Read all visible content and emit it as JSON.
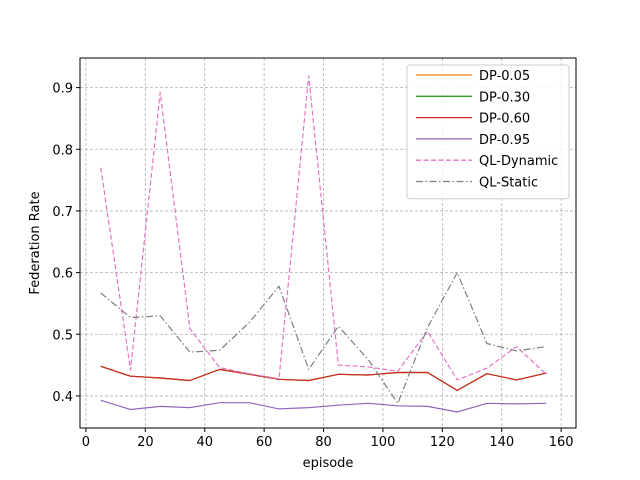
{
  "chart_data": {
    "type": "line",
    "xlabel": "episode",
    "ylabel": "Federation Rate",
    "xlim": [
      -2,
      165
    ],
    "ylim": [
      0.348,
      0.948
    ],
    "xticks": [
      0,
      20,
      40,
      60,
      80,
      100,
      120,
      140,
      160
    ],
    "xtick_labels": [
      "0",
      "20",
      "40",
      "60",
      "80",
      "100",
      "120",
      "140",
      "160"
    ],
    "yticks": [
      0.4,
      0.5,
      0.6,
      0.7,
      0.8,
      0.9
    ],
    "ytick_labels": [
      "0.4",
      "0.5",
      "0.6",
      "0.7",
      "0.8",
      "0.9"
    ],
    "grid": true,
    "legend_position": "upper-right",
    "x": [
      5,
      15,
      25,
      35,
      45,
      55,
      65,
      75,
      85,
      95,
      105,
      115,
      125,
      135,
      145,
      155
    ],
    "series": [
      {
        "name": "DP-0.05",
        "color": "#ff7f0e",
        "dash": "solid",
        "values": [
          0.448,
          0.432,
          0.429,
          0.425,
          0.443,
          0.435,
          0.427,
          0.425,
          0.435,
          0.434,
          0.438,
          0.438,
          0.409,
          0.436,
          0.426,
          0.437
        ]
      },
      {
        "name": "DP-0.30",
        "color": "#2ca02c",
        "dash": "solid",
        "values": [
          0.448,
          0.432,
          0.429,
          0.425,
          0.443,
          0.435,
          0.427,
          0.425,
          0.435,
          0.434,
          0.438,
          0.438,
          0.409,
          0.436,
          0.426,
          0.437
        ]
      },
      {
        "name": "DP-0.60",
        "color": "#d62728",
        "dash": "solid",
        "values": [
          0.448,
          0.432,
          0.429,
          0.425,
          0.443,
          0.435,
          0.427,
          0.425,
          0.435,
          0.434,
          0.438,
          0.438,
          0.409,
          0.436,
          0.426,
          0.437
        ]
      },
      {
        "name": "DP-0.95",
        "color": "#9467bd",
        "dash": "solid",
        "values": [
          0.393,
          0.378,
          0.383,
          0.381,
          0.389,
          0.389,
          0.379,
          0.381,
          0.385,
          0.388,
          0.384,
          0.383,
          0.374,
          0.388,
          0.387,
          0.388
        ]
      },
      {
        "name": "QL-Dynamic",
        "color": "#e377c2",
        "dash": "dashed",
        "values": [
          0.77,
          0.442,
          0.892,
          0.509,
          0.446,
          0.436,
          0.428,
          0.919,
          0.45,
          0.447,
          0.44,
          0.505,
          0.426,
          0.445,
          0.48,
          0.435
        ]
      },
      {
        "name": "QL-Static",
        "color": "#7f7f7f",
        "dash": "dashdot",
        "values": [
          0.567,
          0.527,
          0.53,
          0.471,
          0.474,
          0.519,
          0.578,
          0.443,
          0.513,
          0.459,
          0.388,
          0.511,
          0.6,
          0.485,
          0.473,
          0.48
        ]
      }
    ]
  }
}
